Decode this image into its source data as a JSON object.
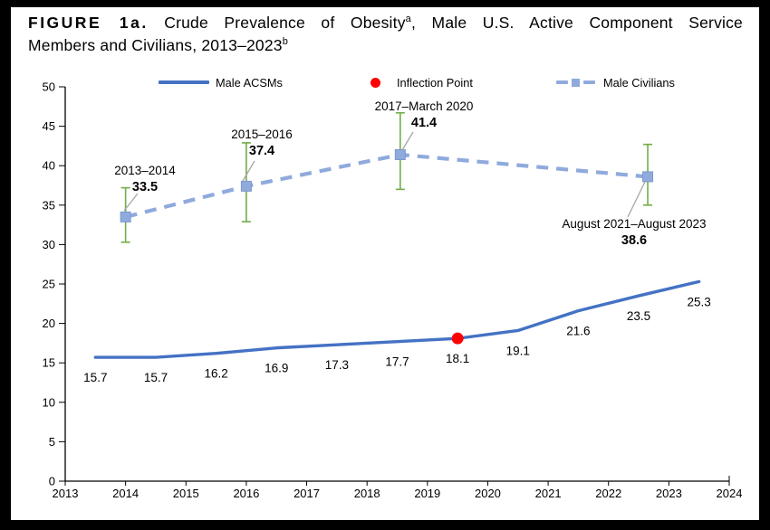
{
  "figure_title": {
    "line1": {
      "label": "FIGURE 1a.",
      "text": "Crude Prevalence of Obesity",
      "sup": "a",
      "tail": ", Male U.S. Active Component Service"
    },
    "line2": {
      "text": "Members and Civilians, 2013–2023",
      "sup": "b"
    }
  },
  "legend": {
    "items": [
      {
        "label": "Male ACSMs",
        "marker": "solid-line",
        "color": "#4472C4"
      },
      {
        "label": "Inflection Point",
        "marker": "dot",
        "color": "#FF0000"
      },
      {
        "label": "Male Civilians",
        "marker": "dashed-line-square",
        "color": "#8FAADC"
      }
    ]
  },
  "chart_data": {
    "type": "line",
    "title": "Crude Prevalence of Obesity, Male U.S. Active Component Service Members and Civilians, 2013–2023",
    "xlabel": "",
    "ylabel": "",
    "xlim": [
      2013,
      2024
    ],
    "ylim": [
      0,
      50
    ],
    "x_ticks": [
      2013,
      2014,
      2015,
      2016,
      2017,
      2018,
      2019,
      2020,
      2021,
      2022,
      2023,
      2024
    ],
    "y_ticks": [
      0,
      5,
      10,
      15,
      20,
      25,
      30,
      35,
      40,
      45,
      50
    ],
    "grid": false,
    "legend_position": "top",
    "series": [
      {
        "name": "Male ACSMs",
        "type": "line",
        "line_style": "solid",
        "color": "#4472C4",
        "x": [
          2013.5,
          2014.5,
          2015.5,
          2016.5,
          2017.5,
          2018.5,
          2019.5,
          2020.5,
          2021.5,
          2022.5,
          2023.5
        ],
        "values": [
          15.7,
          15.7,
          16.2,
          16.9,
          17.3,
          17.7,
          18.1,
          19.1,
          21.6,
          23.5,
          25.3
        ],
        "point_labels": [
          "15.7",
          "15.7",
          "16.2",
          "16.9",
          "17.3",
          "17.7",
          "18.1",
          "19.1",
          "21.6",
          "23.5",
          "25.3"
        ]
      },
      {
        "name": "Male Civilians",
        "type": "line",
        "line_style": "dashed",
        "marker": "square",
        "color": "#8FAADC",
        "x": [
          2014.0,
          2016.0,
          2018.55,
          2022.65
        ],
        "values": [
          33.5,
          37.4,
          41.4,
          38.6
        ],
        "error_bars": {
          "color": "#70AD47",
          "low": [
            30.3,
            32.9,
            37.0,
            35.0
          ],
          "high": [
            37.2,
            42.9,
            46.7,
            42.7
          ]
        },
        "annotations": [
          {
            "period": "2013–2014",
            "value": "33.5"
          },
          {
            "period": "2015–2016",
            "value": "37.4"
          },
          {
            "period": "2017–March 2020",
            "value": "41.4"
          },
          {
            "period": "August 2021–August 2023",
            "value": "38.6"
          }
        ]
      }
    ],
    "inflection_point": {
      "x": 2019.5,
      "value": 18.1,
      "color": "#FF0000",
      "label": "Inflection Point"
    },
    "leader_line_color": "#A6A6A6",
    "axis_color": "#000000"
  }
}
